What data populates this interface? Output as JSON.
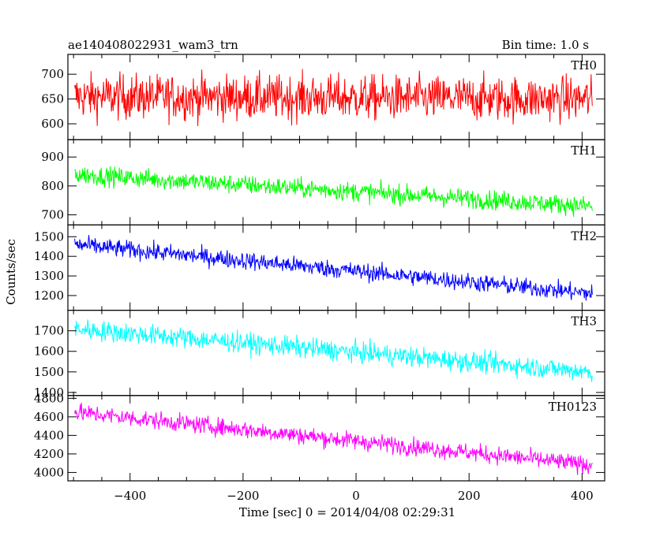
{
  "header": {
    "title": "ae140408022931_wam3_trn",
    "bin_time": "Bin time: 1.0 s"
  },
  "axes": {
    "xlabel": "Time [sec] 0 = 2014/04/08 02:29:31",
    "ylabel": "Counts/sec",
    "x_ticks": [
      "−400",
      "−200",
      "0",
      "200",
      "400"
    ]
  },
  "chart_data": {
    "type": "line",
    "xlabel": "Time [sec] 0 = 2014/04/08 02:29:31",
    "ylabel": "Counts/sec",
    "xlim": [
      -510,
      440
    ],
    "x_range": [
      -498,
      418
    ],
    "grid": false,
    "panels": [
      {
        "name": "TH0",
        "color": "#ff0000",
        "ylim": [
          568,
          740
        ],
        "yticks": [
          600,
          650,
          700
        ],
        "ytick_labels": [
          "600",
          "650",
          "700"
        ],
        "start_level": 655,
        "end_level": 650,
        "noise": 38
      },
      {
        "name": "TH1",
        "color": "#00ff00",
        "ylim": [
          665,
          960
        ],
        "yticks": [
          700,
          800,
          900
        ],
        "ytick_labels": [
          "700",
          "800",
          "900"
        ],
        "start_level": 840,
        "end_level": 730,
        "noise": 28
      },
      {
        "name": "TH2",
        "color": "#0000ff",
        "ylim": [
          1125,
          1560
        ],
        "yticks": [
          1200,
          1300,
          1400,
          1500
        ],
        "ytick_labels": [
          "1200",
          "1300",
          "1400",
          "1500"
        ],
        "start_level": 1460,
        "end_level": 1210,
        "noise": 38
      },
      {
        "name": "TH3",
        "color": "#00ffff",
        "ylim": [
          1385,
          1800
        ],
        "yticks": [
          1400,
          1500,
          1600,
          1700
        ],
        "ytick_labels": [
          "1400",
          "1500",
          "1600",
          "1700"
        ],
        "start_level": 1710,
        "end_level": 1500,
        "noise": 42
      },
      {
        "name": "TH0123",
        "color": "#ff00ff",
        "ylim": [
          3910,
          4830
        ],
        "yticks": [
          4000,
          4200,
          4400,
          4600,
          4800
        ],
        "ytick_labels": [
          "4000",
          "4200",
          "4400",
          "4600",
          "4800"
        ],
        "start_level": 4650,
        "end_level": 4080,
        "noise": 80
      }
    ]
  }
}
